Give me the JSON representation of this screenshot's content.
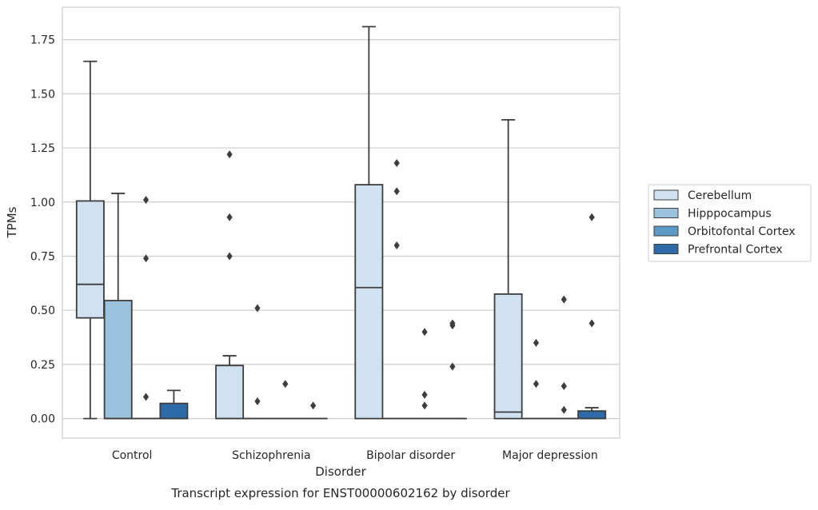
{
  "chart_data": {
    "type": "box",
    "caption": "Transcript expression for ENST00000602162 by disorder",
    "xlabel": "Disorder",
    "ylabel": "TPMs",
    "ylim": [
      -0.09,
      1.9
    ],
    "yticks": [
      "0.00",
      "0.25",
      "0.50",
      "0.75",
      "1.00",
      "1.25",
      "1.50",
      "1.75"
    ],
    "ytick_values": [
      0,
      0.25,
      0.5,
      0.75,
      1.0,
      1.25,
      1.5,
      1.75
    ],
    "grid": "horizontal",
    "legend_position": "right",
    "categories": [
      "Control",
      "Schizophrenia",
      "Bipolar disorder",
      "Major depression"
    ],
    "series": [
      {
        "name": "Cerebellum",
        "color": "#d0e1f2",
        "boxes": [
          {
            "whislo": 0.0,
            "q1": 0.465,
            "med": 0.62,
            "q3": 1.005,
            "whishi": 1.65,
            "fliers": []
          },
          {
            "whislo": 0.0,
            "q1": 0.0,
            "med": 0.0,
            "q3": 0.245,
            "whishi": 0.29,
            "fliers": [
              0.75,
              0.93,
              1.22
            ]
          },
          {
            "whislo": 0.0,
            "q1": 0.0,
            "med": 0.605,
            "q3": 1.08,
            "whishi": 1.81,
            "fliers": []
          },
          {
            "whislo": 0.0,
            "q1": 0.0,
            "med": 0.03,
            "q3": 0.575,
            "whishi": 1.38,
            "fliers": []
          }
        ]
      },
      {
        "name": "Hipppocampus",
        "color": "#9ac2dc",
        "boxes": [
          {
            "whislo": 0.0,
            "q1": 0.0,
            "med": 0.0,
            "q3": 0.545,
            "whishi": 1.04,
            "fliers": []
          },
          {
            "whislo": 0.0,
            "q1": 0.0,
            "med": 0.0,
            "q3": 0.0,
            "whishi": 0.0,
            "fliers": [
              0.08,
              0.51
            ]
          },
          {
            "whislo": 0.0,
            "q1": 0.0,
            "med": 0.0,
            "q3": 0.0,
            "whishi": 0.0,
            "fliers": [
              0.8,
              1.05,
              1.18
            ]
          },
          {
            "whislo": 0.0,
            "q1": 0.0,
            "med": 0.0,
            "q3": 0.0,
            "whishi": 0.0,
            "fliers": [
              0.16,
              0.35
            ]
          }
        ]
      },
      {
        "name": "Orbitofontal Cortex",
        "color": "#5b9ac7",
        "boxes": [
          {
            "whislo": 0.0,
            "q1": 0.0,
            "med": 0.0,
            "q3": 0.0,
            "whishi": 0.0,
            "fliers": [
              0.1,
              0.74,
              1.01
            ]
          },
          {
            "whislo": 0.0,
            "q1": 0.0,
            "med": 0.0,
            "q3": 0.0,
            "whishi": 0.0,
            "fliers": [
              0.16
            ]
          },
          {
            "whislo": 0.0,
            "q1": 0.0,
            "med": 0.0,
            "q3": 0.0,
            "whishi": 0.0,
            "fliers": [
              0.06,
              0.11,
              0.4
            ]
          },
          {
            "whislo": 0.0,
            "q1": 0.0,
            "med": 0.0,
            "q3": 0.0,
            "whishi": 0.0,
            "fliers": [
              0.04,
              0.15,
              0.55
            ]
          }
        ]
      },
      {
        "name": "Prefrontal Cortex",
        "color": "#2e69a8",
        "boxes": [
          {
            "whislo": 0.0,
            "q1": 0.0,
            "med": 0.0,
            "q3": 0.07,
            "whishi": 0.13,
            "fliers": []
          },
          {
            "whislo": 0.0,
            "q1": 0.0,
            "med": 0.0,
            "q3": 0.0,
            "whishi": 0.0,
            "fliers": [
              0.06
            ]
          },
          {
            "whislo": 0.0,
            "q1": 0.0,
            "med": 0.0,
            "q3": 0.0,
            "whishi": 0.0,
            "fliers": [
              0.24,
              0.43,
              0.44
            ]
          },
          {
            "whislo": 0.0,
            "q1": 0.0,
            "med": 0.0,
            "q3": 0.035,
            "whishi": 0.05,
            "fliers": [
              0.44,
              0.93
            ]
          }
        ]
      }
    ]
  }
}
